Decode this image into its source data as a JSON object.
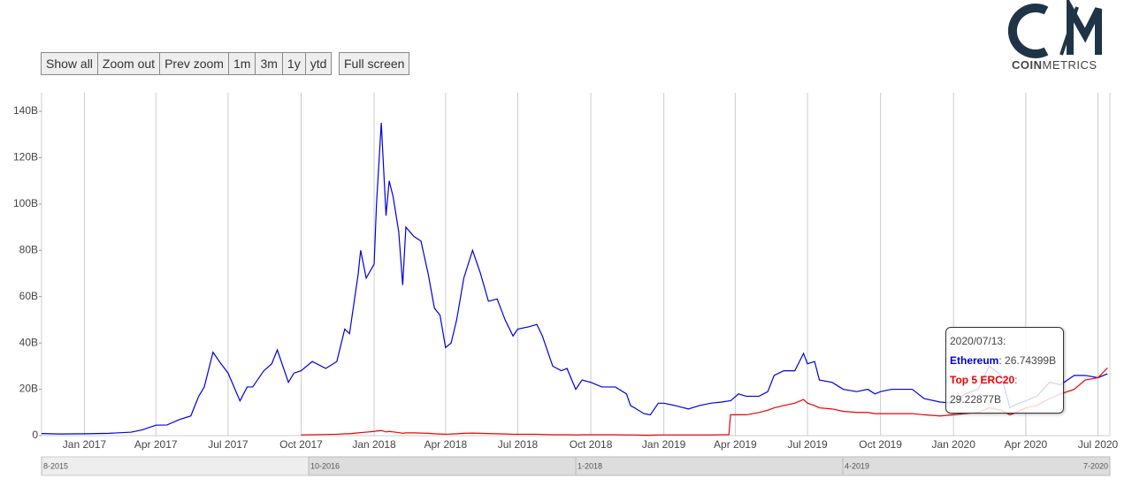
{
  "chart_data": {
    "type": "line",
    "buttons": [
      "Show all",
      "Zoom out",
      "Prev zoom",
      "1m",
      "3m",
      "1y",
      "ytd",
      "Full screen"
    ],
    "logo": {
      "left": "COIN",
      "right": "METRICS"
    },
    "x": [
      "2016-11-08",
      "2016-12-01",
      "2017-01-01",
      "2017-02-01",
      "2017-03-01",
      "2017-03-15",
      "2017-04-01",
      "2017-04-15",
      "2017-05-01",
      "2017-05-15",
      "2017-05-25",
      "2017-06-01",
      "2017-06-12",
      "2017-06-20",
      "2017-07-01",
      "2017-07-16",
      "2017-07-25",
      "2017-08-01",
      "2017-08-15",
      "2017-08-25",
      "2017-09-01",
      "2017-09-15",
      "2017-09-22",
      "2017-10-01",
      "2017-10-15",
      "2017-11-01",
      "2017-11-15",
      "2017-11-25",
      "2017-12-01",
      "2017-12-12",
      "2017-12-15",
      "2017-12-22",
      "2018-01-01",
      "2018-01-04",
      "2018-01-10",
      "2018-01-16",
      "2018-01-20",
      "2018-01-25",
      "2018-02-01",
      "2018-02-06",
      "2018-02-10",
      "2018-02-20",
      "2018-03-01",
      "2018-03-10",
      "2018-03-18",
      "2018-03-25",
      "2018-04-01",
      "2018-04-08",
      "2018-04-15",
      "2018-04-24",
      "2018-05-05",
      "2018-05-15",
      "2018-05-25",
      "2018-06-05",
      "2018-06-15",
      "2018-06-25",
      "2018-07-01",
      "2018-07-15",
      "2018-07-25",
      "2018-08-01",
      "2018-08-14",
      "2018-08-25",
      "2018-09-01",
      "2018-09-12",
      "2018-09-20",
      "2018-10-01",
      "2018-10-15",
      "2018-11-01",
      "2018-11-15",
      "2018-11-20",
      "2018-11-25",
      "2018-12-07",
      "2018-12-15",
      "2018-12-25",
      "2019-01-01",
      "2019-01-15",
      "2019-02-01",
      "2019-02-15",
      "2019-03-01",
      "2019-03-15",
      "2019-03-24",
      "2019-03-26",
      "2019-04-05",
      "2019-04-15",
      "2019-05-01",
      "2019-05-12",
      "2019-05-20",
      "2019-06-01",
      "2019-06-15",
      "2019-06-26",
      "2019-07-01",
      "2019-07-10",
      "2019-07-16",
      "2019-08-01",
      "2019-08-15",
      "2019-09-01",
      "2019-09-15",
      "2019-09-24",
      "2019-10-01",
      "2019-10-15",
      "2019-11-01",
      "2019-11-10",
      "2019-11-25",
      "2019-12-15",
      "2020-01-01",
      "2020-01-15",
      "2020-02-01",
      "2020-02-15",
      "2020-03-01",
      "2020-03-12",
      "2020-03-20",
      "2020-04-01",
      "2020-04-15",
      "2020-05-01",
      "2020-05-15",
      "2020-06-01",
      "2020-06-15",
      "2020-07-01",
      "2020-07-13"
    ],
    "series": [
      {
        "name": "Ethereum",
        "color": "#0000dd",
        "values": [
          0.9,
          0.7,
          0.8,
          1.0,
          1.5,
          2.5,
          4.5,
          4.6,
          7,
          8.5,
          17,
          21,
          36,
          32,
          27,
          15,
          21,
          21,
          28,
          31,
          37,
          23,
          27,
          28,
          32,
          29,
          32,
          46,
          44,
          70,
          80,
          68,
          74,
          100,
          135,
          95,
          110,
          103,
          88,
          65,
          90,
          86,
          84,
          70,
          55,
          52,
          38,
          40,
          50,
          68,
          80,
          70,
          58,
          59,
          50,
          43,
          46,
          47,
          48,
          43,
          30,
          28,
          29,
          20,
          24,
          23,
          21,
          21,
          18,
          13,
          12,
          9.5,
          9,
          14,
          14,
          13,
          11.5,
          13,
          14,
          14.5,
          15,
          15,
          18,
          17,
          17,
          19,
          26,
          28,
          28,
          35.5,
          31,
          32,
          24,
          23,
          20,
          19,
          20,
          18,
          19,
          20,
          20,
          20,
          16,
          14.5,
          14,
          18,
          20,
          30,
          26,
          12,
          13.5,
          15,
          17,
          23,
          22,
          26,
          26,
          25,
          26.74399
        ]
      },
      {
        "name": "Top 5 ERC20",
        "color": "#ee0000",
        "values": [
          null,
          null,
          null,
          null,
          null,
          null,
          null,
          null,
          null,
          null,
          null,
          null,
          null,
          null,
          null,
          null,
          null,
          null,
          null,
          null,
          null,
          null,
          null,
          0.3,
          0.4,
          0.5,
          0.6,
          0.8,
          0.8,
          1.2,
          1.3,
          1.5,
          1.8,
          2,
          2.2,
          1.6,
          1.8,
          1.6,
          1.3,
          1.0,
          1.2,
          1.2,
          1.1,
          1.0,
          0.8,
          0.7,
          0.6,
          0.7,
          0.8,
          1.0,
          1.1,
          1.0,
          0.9,
          0.8,
          0.7,
          0.6,
          0.6,
          0.6,
          0.6,
          0.5,
          0.4,
          0.4,
          0.4,
          0.3,
          0.4,
          0.4,
          0.4,
          0.4,
          0.3,
          0.3,
          0.3,
          0.2,
          0.2,
          0.3,
          0.3,
          0.3,
          0.3,
          0.3,
          0.3,
          0.4,
          0.4,
          9,
          9,
          9,
          10,
          11,
          12,
          13,
          14,
          15.6,
          14,
          13,
          12,
          11.5,
          10.5,
          10,
          10,
          9.5,
          9.5,
          9.5,
          9.5,
          9.5,
          9,
          8.5,
          9,
          9.5,
          10,
          12,
          11,
          9,
          10,
          12,
          13,
          16,
          18,
          20,
          24,
          25,
          29.22877
        ]
      }
    ],
    "xlim": [
      "2016-11-08",
      "2020-07-16"
    ],
    "xticks": [
      {
        "value": "2017-01-01",
        "label": "Jan 2017"
      },
      {
        "value": "2017-04-01",
        "label": "Apr 2017"
      },
      {
        "value": "2017-07-01",
        "label": "Jul 2017"
      },
      {
        "value": "2017-10-01",
        "label": "Oct 2017"
      },
      {
        "value": "2018-01-01",
        "label": "Jan 2018"
      },
      {
        "value": "2018-04-01",
        "label": "Apr 2018"
      },
      {
        "value": "2018-07-01",
        "label": "Jul 2018"
      },
      {
        "value": "2018-10-01",
        "label": "Oct 2018"
      },
      {
        "value": "2019-01-01",
        "label": "Jan 2019"
      },
      {
        "value": "2019-04-01",
        "label": "Apr 2019"
      },
      {
        "value": "2019-07-01",
        "label": "Jul 2019"
      },
      {
        "value": "2019-10-01",
        "label": "Oct 2019"
      },
      {
        "value": "2020-01-01",
        "label": "Jan 2020"
      },
      {
        "value": "2020-04-01",
        "label": "Apr 2020"
      },
      {
        "value": "2020-07-01",
        "label": "Jul 2020"
      }
    ],
    "ylim": [
      0,
      148
    ],
    "yticks": [
      0,
      {
        "value": 20,
        "label": "20B"
      },
      {
        "value": 40,
        "label": "40B"
      },
      {
        "value": 60,
        "label": "60B"
      },
      {
        "value": 80,
        "label": "80B"
      },
      {
        "value": 100,
        "label": "100B"
      },
      {
        "value": 120,
        "label": "120B"
      },
      {
        "value": 140,
        "label": "140B"
      }
    ],
    "grid": "x",
    "navigator": {
      "labels": [
        "8-2015",
        "10-2016",
        "1-2018",
        "4-2019",
        "7-2020"
      ]
    },
    "tooltip": {
      "date": "2020/07/13:",
      "values": [
        {
          "value": 26.74399,
          "label": ": 26.74399B"
        },
        {
          "value": 29.22877,
          "label": ": 29.22877B"
        }
      ]
    }
  }
}
